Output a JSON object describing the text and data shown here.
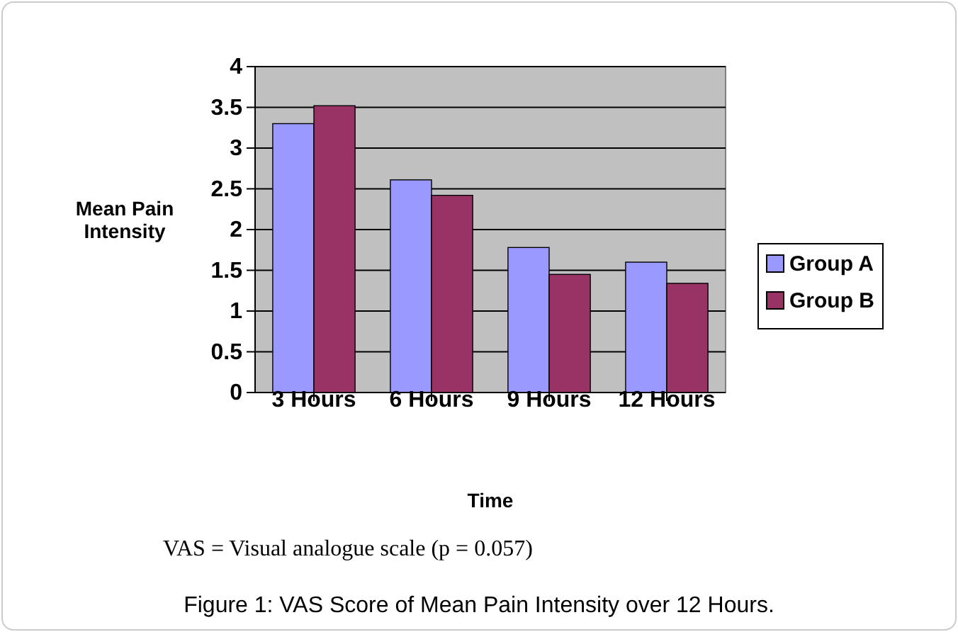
{
  "chart_data": {
    "type": "bar",
    "title": "Figure 1: VAS Score of Mean Pain Intensity over 12 Hours.",
    "xlabel": "Time",
    "ylabel": "Mean Pain Intensity",
    "annotations": [
      "VAS = Visual analogue scale (p = 0.057)"
    ],
    "categories": [
      "3 Hours",
      "6 Hours",
      "9 Hours",
      "12 Hours"
    ],
    "series": [
      {
        "name": "Group A",
        "color": "#9999ff",
        "values": [
          3.3,
          2.61,
          1.78,
          1.6
        ]
      },
      {
        "name": "Group B",
        "color": "#993366",
        "values": [
          3.52,
          2.42,
          1.45,
          1.34
        ]
      }
    ],
    "ylim": [
      0,
      4
    ],
    "yticks": [
      0,
      0.5,
      1,
      1.5,
      2,
      2.5,
      3,
      3.5,
      4
    ],
    "grid": "y",
    "legend": "right"
  }
}
